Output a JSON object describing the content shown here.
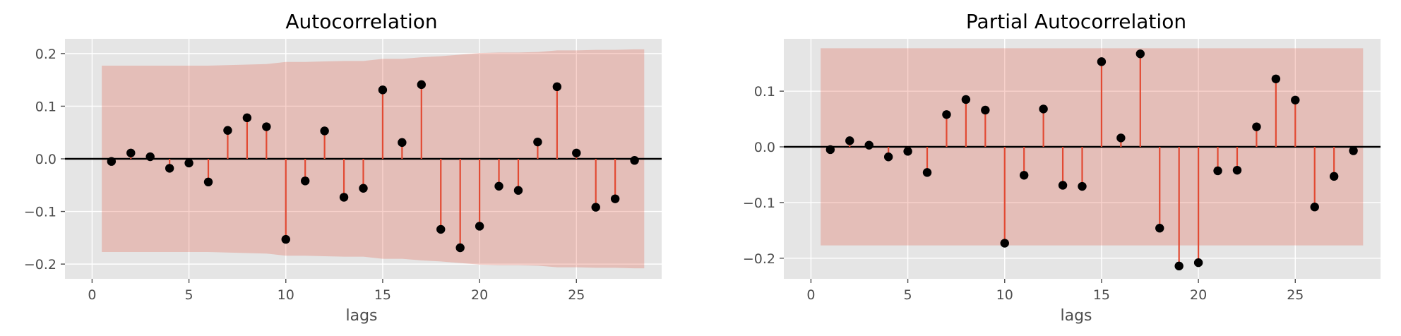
{
  "chart_data": [
    {
      "type": "stem",
      "title": "Autocorrelation",
      "xlabel": "lags",
      "ylabel": "",
      "xlim": [
        -1.4,
        29.4
      ],
      "ylim": [
        -0.228,
        0.228
      ],
      "xticks": [
        0,
        5,
        10,
        15,
        20,
        25
      ],
      "xtick_labels": [
        "0",
        "5",
        "10",
        "15",
        "20",
        "25"
      ],
      "yticks": [
        -0.2,
        -0.1,
        0.0,
        0.1,
        0.2
      ],
      "ytick_labels": [
        "−0.2",
        "−0.1",
        "0.0",
        "0.1",
        "0.2"
      ],
      "grid": true,
      "zero_line": true,
      "lags": [
        1,
        2,
        3,
        4,
        5,
        6,
        7,
        8,
        9,
        10,
        11,
        12,
        13,
        14,
        15,
        16,
        17,
        18,
        19,
        20,
        21,
        22,
        23,
        24,
        25,
        26,
        27,
        28
      ],
      "values": [
        -0.005,
        0.011,
        0.004,
        -0.018,
        -0.008,
        -0.044,
        0.054,
        0.078,
        0.061,
        -0.153,
        -0.042,
        0.053,
        -0.073,
        -0.056,
        0.131,
        0.031,
        0.141,
        -0.134,
        -0.169,
        -0.128,
        -0.052,
        -0.06,
        0.032,
        0.137,
        0.011,
        -0.092,
        -0.076,
        -0.003
      ],
      "confint_x": [
        0.5,
        1,
        2,
        3,
        4,
        5,
        6,
        7,
        8,
        9,
        10,
        11,
        12,
        13,
        14,
        15,
        16,
        17,
        18,
        19,
        20,
        21,
        22,
        23,
        24,
        25,
        26,
        27,
        28,
        28.5
      ],
      "confint_upper": [
        0.177,
        0.177,
        0.177,
        0.177,
        0.177,
        0.177,
        0.177,
        0.178,
        0.179,
        0.18,
        0.184,
        0.184,
        0.185,
        0.186,
        0.186,
        0.19,
        0.19,
        0.193,
        0.195,
        0.198,
        0.201,
        0.202,
        0.202,
        0.203,
        0.206,
        0.206,
        0.207,
        0.207,
        0.208,
        0.208
      ],
      "colors": {
        "stem": "#e24a33",
        "marker": "#000000",
        "band": "#e24a33",
        "zero_line": "#000000",
        "background": "#e5e5e5",
        "grid": "#ffffff"
      }
    },
    {
      "type": "stem",
      "title": "Partial Autocorrelation",
      "xlabel": "lags",
      "ylabel": "",
      "xlim": [
        -1.4,
        29.4
      ],
      "ylim": [
        -0.237,
        0.194
      ],
      "xticks": [
        0,
        5,
        10,
        15,
        20,
        25
      ],
      "xtick_labels": [
        "0",
        "5",
        "10",
        "15",
        "20",
        "25"
      ],
      "yticks": [
        -0.2,
        -0.1,
        0.0,
        0.1
      ],
      "ytick_labels": [
        "−0.2",
        "−0.1",
        "0.0",
        "0.1"
      ],
      "grid": true,
      "zero_line": true,
      "lags": [
        1,
        2,
        3,
        4,
        5,
        6,
        7,
        8,
        9,
        10,
        11,
        12,
        13,
        14,
        15,
        16,
        17,
        18,
        19,
        20,
        21,
        22,
        23,
        24,
        25,
        26,
        27,
        28
      ],
      "values": [
        -0.005,
        0.011,
        0.003,
        -0.018,
        -0.008,
        -0.046,
        0.058,
        0.085,
        0.066,
        -0.173,
        -0.051,
        0.068,
        -0.069,
        -0.071,
        0.153,
        0.016,
        0.167,
        -0.146,
        -0.214,
        -0.208,
        -0.043,
        -0.042,
        0.036,
        0.122,
        0.084,
        -0.108,
        -0.053,
        -0.007
      ],
      "confint_x": [
        0.5,
        28.5
      ],
      "confint_upper": [
        0.177,
        0.177
      ],
      "colors": {
        "stem": "#e24a33",
        "marker": "#000000",
        "band": "#e24a33",
        "zero_line": "#000000",
        "background": "#e5e5e5",
        "grid": "#ffffff"
      }
    }
  ]
}
